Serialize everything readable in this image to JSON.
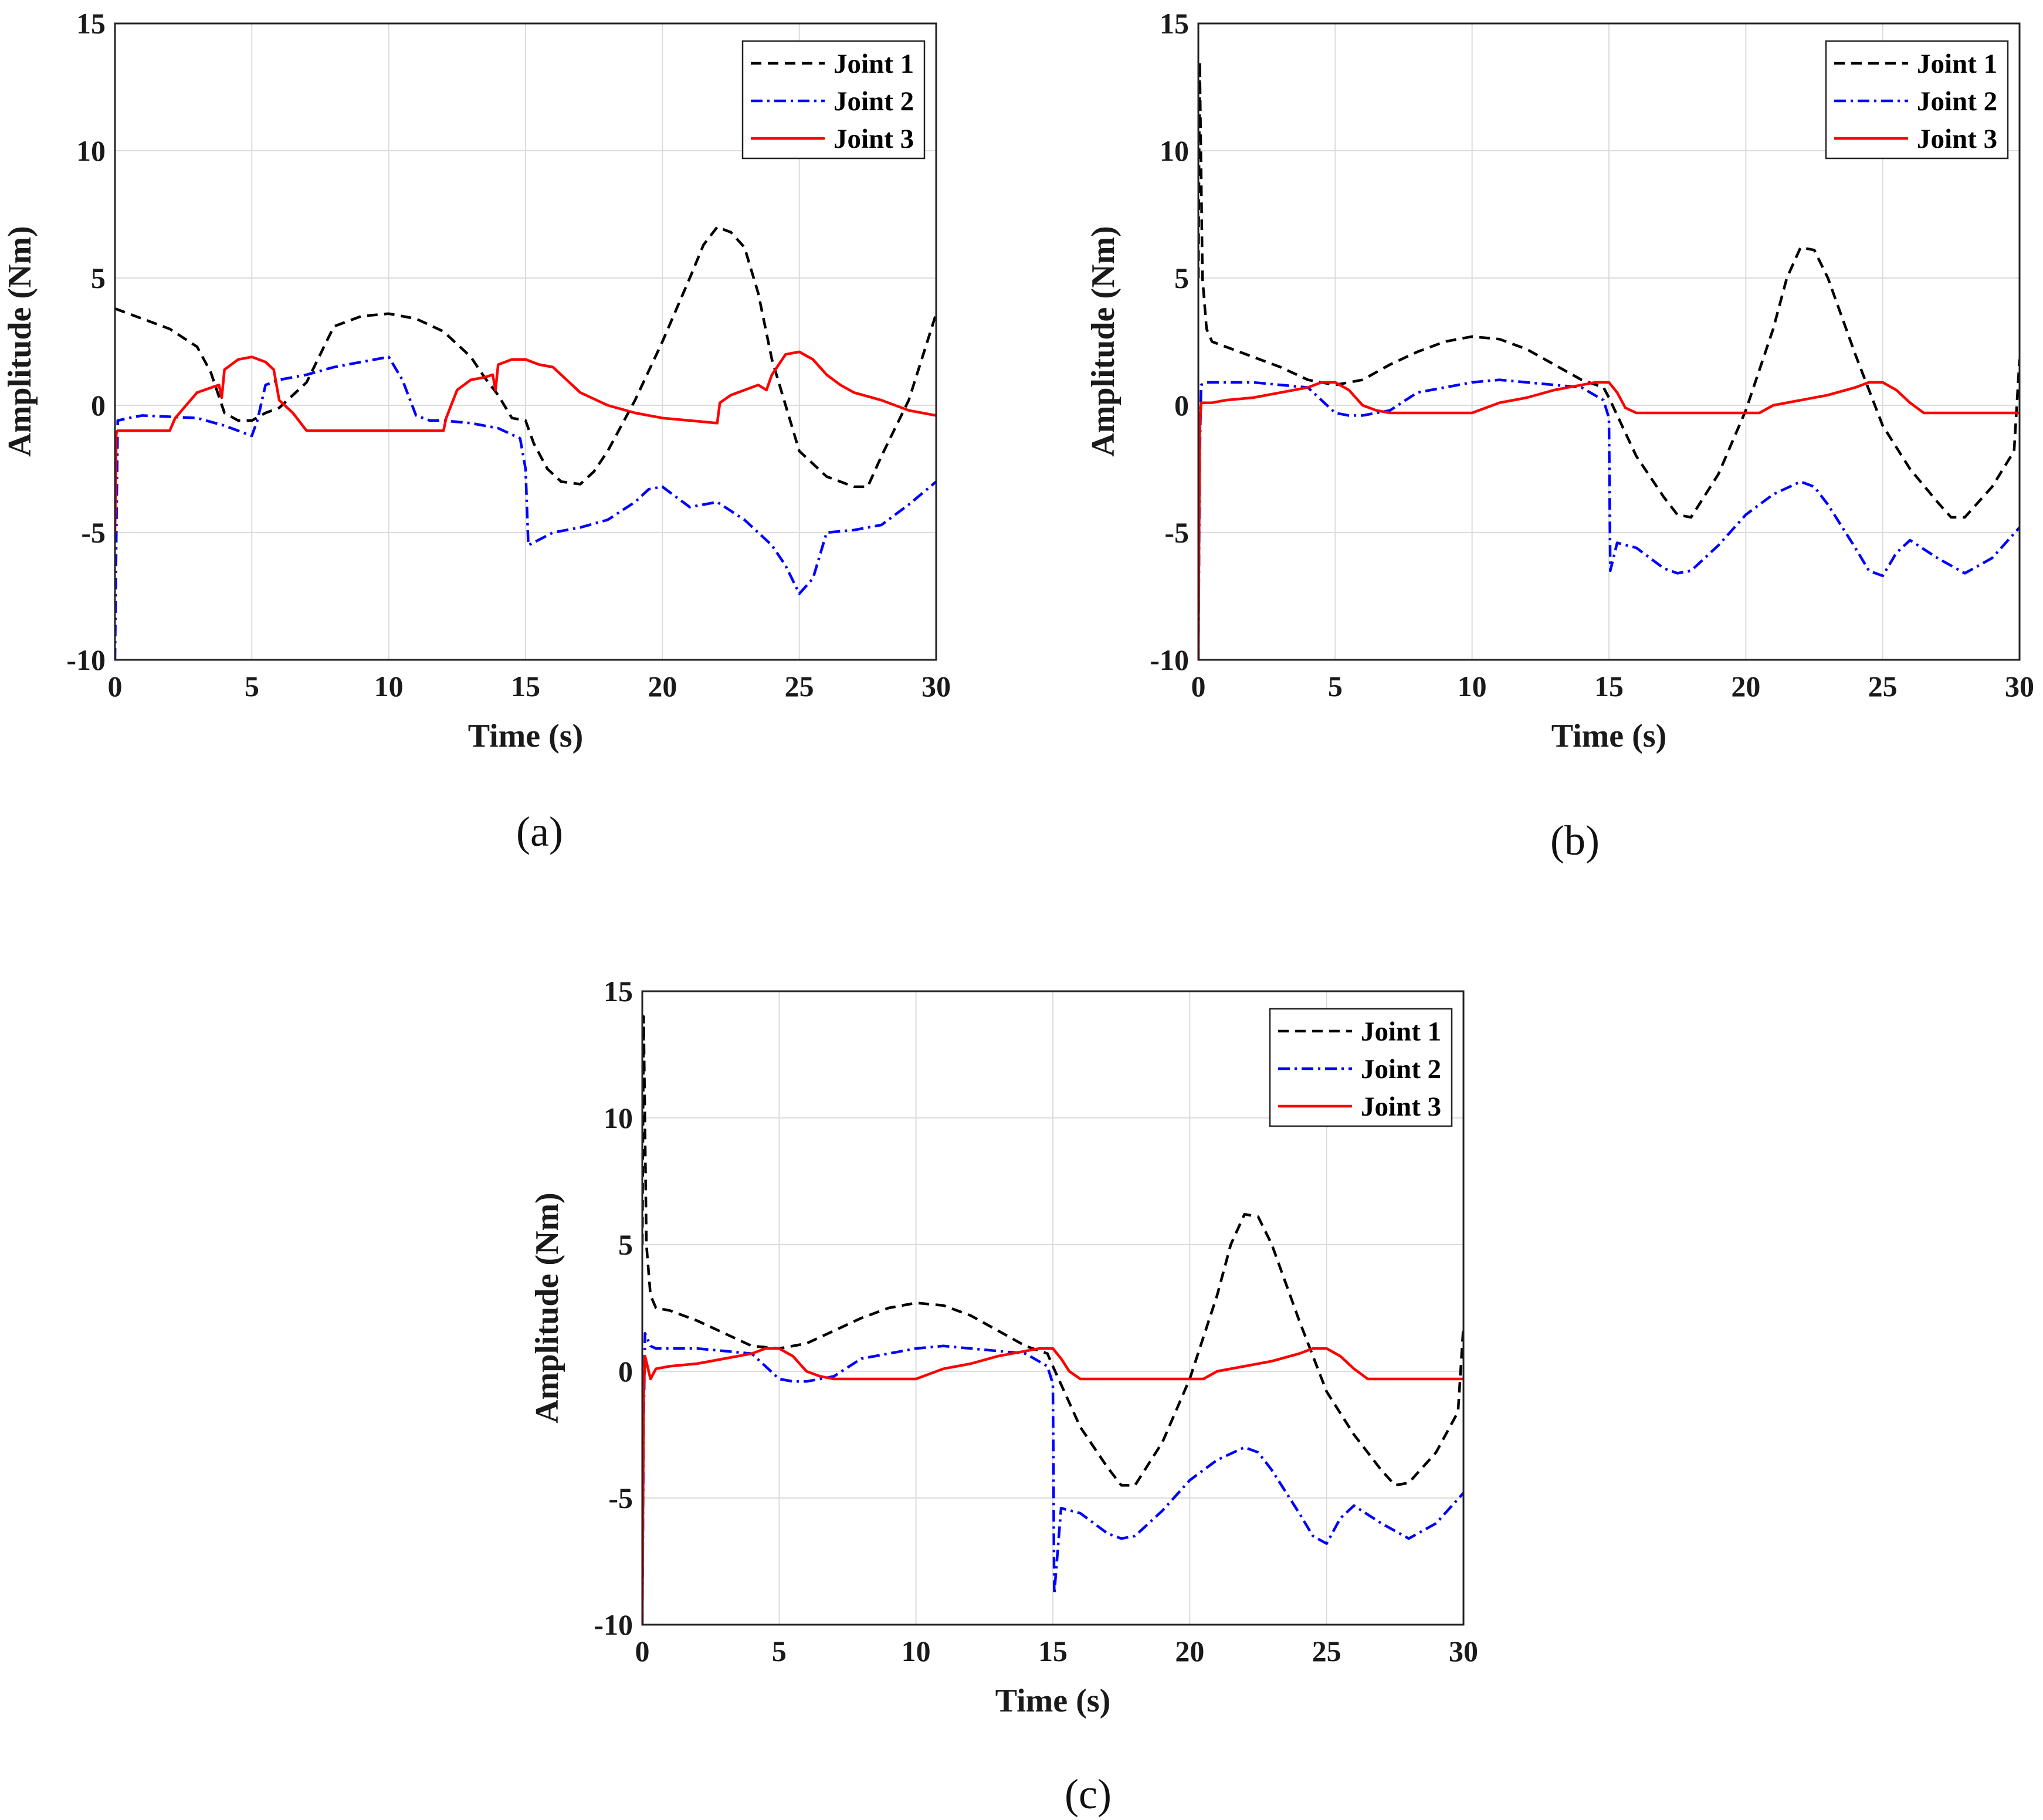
{
  "chart_data": [
    {
      "id": "a",
      "type": "line",
      "caption": "(a)",
      "title": "",
      "xlabel": "Time (s)",
      "ylabel": "Amplitude (Nm)",
      "xlim": [
        0,
        30
      ],
      "ylim": [
        -10,
        15
      ],
      "xticks": [
        "0",
        "5",
        "10",
        "15",
        "20",
        "25",
        "30"
      ],
      "yticks": [
        "-10",
        "-5",
        "0",
        "5",
        "10",
        "15"
      ],
      "grid": true,
      "legend_position": "top-right",
      "series": [
        {
          "name": "Joint 1",
          "color": "#000000",
          "dash": "dashed",
          "x": [
            0,
            0.5,
            1,
            2,
            3,
            3.5,
            4,
            4.5,
            5,
            5.5,
            6,
            7,
            7.5,
            8,
            9,
            10,
            11,
            12,
            12.5,
            13,
            13.5,
            14,
            14.5,
            15,
            15.3,
            15.8,
            16.3,
            17,
            17.5,
            18,
            19,
            20,
            21,
            21.5,
            22,
            22.5,
            23,
            23.5,
            24,
            25,
            26,
            27,
            27.5,
            28,
            29,
            30
          ],
          "y": [
            3.8,
            3.6,
            3.4,
            3.0,
            2.3,
            1.3,
            -0.3,
            -0.6,
            -0.6,
            -0.3,
            -0.1,
            0.9,
            2.0,
            3.1,
            3.5,
            3.6,
            3.4,
            2.9,
            2.4,
            1.9,
            1.1,
            0.4,
            -0.5,
            -0.6,
            -1.5,
            -2.5,
            -3.0,
            -3.1,
            -2.6,
            -1.8,
            0.2,
            2.5,
            5.0,
            6.3,
            7.0,
            6.8,
            6.2,
            4.4,
            1.8,
            -1.8,
            -2.8,
            -3.2,
            -3.2,
            -2.0,
            0.2,
            3.6
          ]
        },
        {
          "name": "Joint 2",
          "color": "#0000ff",
          "dash": "dashdot",
          "x": [
            0,
            0.05,
            0.1,
            0.5,
            1,
            3,
            4,
            4.5,
            5,
            5.2,
            5.5,
            6,
            7,
            8,
            9,
            10,
            10.5,
            11,
            11.5,
            12,
            13,
            14,
            14.8,
            15,
            15.1,
            16,
            17,
            18,
            19,
            19.5,
            20,
            21,
            22,
            23,
            24,
            24.5,
            25,
            25.5,
            26,
            27,
            28,
            29,
            30
          ],
          "y": [
            -10,
            -5,
            -0.6,
            -0.5,
            -0.4,
            -0.5,
            -0.8,
            -1.0,
            -1.2,
            -0.6,
            0.8,
            1.0,
            1.2,
            1.5,
            1.7,
            1.9,
            1.0,
            -0.4,
            -0.6,
            -0.6,
            -0.7,
            -0.9,
            -1.3,
            -2.5,
            -5.5,
            -5.0,
            -4.8,
            -4.5,
            -3.8,
            -3.3,
            -3.2,
            -4.0,
            -3.8,
            -4.5,
            -5.5,
            -6.3,
            -7.4,
            -6.8,
            -5.0,
            -4.9,
            -4.7,
            -3.9,
            -3.0
          ]
        },
        {
          "name": "Joint 3",
          "color": "#ff0000",
          "dash": "solid",
          "x": [
            0,
            0.05,
            0.1,
            0.5,
            1,
            2,
            2.2,
            3,
            3.8,
            3.9,
            4,
            4.5,
            5,
            5.5,
            5.8,
            6,
            6.5,
            7,
            8,
            9,
            10,
            11,
            12,
            12.1,
            12.5,
            13,
            13.5,
            13.8,
            13.9,
            14,
            14.5,
            15,
            15.5,
            16,
            16.5,
            17,
            18,
            19,
            20,
            21,
            22,
            22.1,
            22.5,
            23,
            23.5,
            23.8,
            24,
            24.5,
            25,
            25.5,
            26,
            26.5,
            27,
            28,
            29,
            30
          ],
          "y": [
            -5,
            -1.1,
            -1.0,
            -1.0,
            -1.0,
            -1.0,
            -0.5,
            0.5,
            0.8,
            0.3,
            1.4,
            1.8,
            1.9,
            1.7,
            1.4,
            0.2,
            -0.3,
            -1.0,
            -1.0,
            -1.0,
            -1.0,
            -1.0,
            -1.0,
            -0.5,
            0.6,
            1.0,
            1.1,
            1.2,
            0.6,
            1.6,
            1.8,
            1.8,
            1.6,
            1.5,
            1.0,
            0.5,
            0.0,
            -0.3,
            -0.5,
            -0.6,
            -0.7,
            0.1,
            0.4,
            0.6,
            0.8,
            0.6,
            1.2,
            2.0,
            2.1,
            1.8,
            1.2,
            0.8,
            0.5,
            0.2,
            -0.2,
            -0.4
          ]
        }
      ]
    },
    {
      "id": "b",
      "type": "line",
      "caption": "(b)",
      "title": "",
      "xlabel": "Time (s)",
      "ylabel": "Amplitude (Nm)",
      "xlim": [
        0,
        30
      ],
      "ylim": [
        -10,
        15
      ],
      "xticks": [
        "0",
        "5",
        "10",
        "15",
        "20",
        "25",
        "30"
      ],
      "yticks": [
        "-10",
        "-5",
        "0",
        "5",
        "10",
        "15"
      ],
      "grid": true,
      "legend_position": "top-right",
      "series": [
        {
          "name": "Joint 1",
          "color": "#000000",
          "dash": "dashed",
          "x": [
            0,
            0.05,
            0.15,
            0.3,
            0.5,
            1,
            2,
            3,
            4,
            5,
            6,
            7,
            8,
            9,
            10,
            11,
            12,
            13,
            14,
            14.8,
            15,
            16,
            17,
            17.5,
            18,
            19,
            20,
            21,
            21.5,
            22,
            22.5,
            23,
            24,
            25,
            26,
            27,
            27.5,
            28,
            29,
            29.8,
            30
          ],
          "y": [
            5.0,
            13.5,
            5.0,
            3.0,
            2.5,
            2.3,
            1.9,
            1.5,
            1.0,
            0.8,
            1.0,
            1.6,
            2.1,
            2.5,
            2.7,
            2.6,
            2.2,
            1.6,
            1.0,
            0.7,
            0.3,
            -2.0,
            -3.6,
            -4.3,
            -4.4,
            -2.7,
            -0.2,
            3.0,
            5.0,
            6.2,
            6.1,
            5.0,
            2.0,
            -0.8,
            -2.5,
            -3.8,
            -4.4,
            -4.4,
            -3.2,
            -1.8,
            1.8
          ]
        },
        {
          "name": "Joint 2",
          "color": "#0000ff",
          "dash": "dashdot",
          "x": [
            0,
            0.05,
            0.1,
            0.3,
            0.5,
            1,
            2,
            3,
            4,
            4.5,
            5,
            5.5,
            6,
            6.5,
            7,
            8,
            9,
            10,
            11,
            12,
            13,
            14,
            14.8,
            15,
            15.05,
            15.3,
            16,
            17,
            17.5,
            18,
            19,
            20,
            21,
            22,
            22.5,
            23,
            24,
            24.5,
            25,
            25.5,
            26,
            27,
            28,
            29,
            30
          ],
          "y": [
            -10,
            -2,
            0.8,
            0.9,
            0.9,
            0.9,
            0.9,
            0.8,
            0.7,
            0.2,
            -0.3,
            -0.4,
            -0.4,
            -0.3,
            -0.2,
            0.5,
            0.7,
            0.9,
            1.0,
            0.9,
            0.8,
            0.7,
            0.2,
            -0.5,
            -6.5,
            -5.4,
            -5.6,
            -6.4,
            -6.6,
            -6.5,
            -5.5,
            -4.3,
            -3.5,
            -3.0,
            -3.2,
            -3.9,
            -5.6,
            -6.5,
            -6.7,
            -5.8,
            -5.3,
            -6.0,
            -6.6,
            -6.0,
            -4.8
          ]
        },
        {
          "name": "Joint 3",
          "color": "#ff0000",
          "dash": "solid",
          "x": [
            0,
            0.05,
            0.1,
            0.5,
            1,
            2,
            3,
            4,
            4.5,
            5,
            5.5,
            6,
            6.5,
            7,
            8,
            9,
            10,
            11,
            12,
            13,
            14,
            14.5,
            15,
            15.3,
            15.6,
            16,
            17,
            18,
            19,
            20,
            20.5,
            21,
            22,
            23,
            24,
            24.5,
            25,
            25.5,
            26,
            26.5,
            27,
            28,
            29,
            30
          ],
          "y": [
            -10,
            -1,
            0.1,
            0.1,
            0.2,
            0.3,
            0.5,
            0.7,
            0.9,
            0.9,
            0.6,
            0.0,
            -0.2,
            -0.3,
            -0.3,
            -0.3,
            -0.3,
            0.1,
            0.3,
            0.6,
            0.8,
            0.9,
            0.9,
            0.5,
            -0.1,
            -0.3,
            -0.3,
            -0.3,
            -0.3,
            -0.3,
            -0.3,
            0.0,
            0.2,
            0.4,
            0.7,
            0.9,
            0.9,
            0.6,
            0.1,
            -0.3,
            -0.3,
            -0.3,
            -0.3,
            -0.3
          ]
        }
      ]
    },
    {
      "id": "c",
      "type": "line",
      "caption": "(c)",
      "title": "",
      "xlabel": "Time (s)",
      "ylabel": "Amplitude (Nm)",
      "xlim": [
        0,
        30
      ],
      "ylim": [
        -10,
        15
      ],
      "xticks": [
        "0",
        "5",
        "10",
        "15",
        "20",
        "25",
        "30"
      ],
      "yticks": [
        "-10",
        "-5",
        "0",
        "5",
        "10",
        "15"
      ],
      "grid": true,
      "legend_position": "top-right",
      "series": [
        {
          "name": "Joint 1",
          "color": "#000000",
          "dash": "dashed",
          "x": [
            0,
            0.05,
            0.15,
            0.3,
            0.5,
            1,
            2,
            3,
            4,
            5,
            6,
            7,
            8,
            9,
            10,
            11,
            12,
            13,
            14,
            14.8,
            15,
            16,
            17,
            17.5,
            18,
            19,
            20,
            21,
            21.5,
            22,
            22.5,
            23,
            24,
            25,
            26,
            27,
            27.5,
            28,
            29,
            29.8,
            30
          ],
          "y": [
            5.0,
            14.0,
            5.0,
            3.0,
            2.5,
            2.4,
            2.0,
            1.5,
            1.0,
            0.9,
            1.1,
            1.6,
            2.1,
            2.5,
            2.7,
            2.6,
            2.2,
            1.6,
            1.0,
            0.7,
            0.2,
            -2.2,
            -3.8,
            -4.5,
            -4.5,
            -2.8,
            -0.3,
            3.0,
            5.0,
            6.2,
            6.1,
            5.0,
            2.0,
            -0.8,
            -2.5,
            -3.9,
            -4.5,
            -4.4,
            -3.2,
            -1.6,
            1.8
          ]
        },
        {
          "name": "Joint 2",
          "color": "#0000ff",
          "dash": "dashdot",
          "x": [
            0,
            0.05,
            0.1,
            0.3,
            0.5,
            1,
            2,
            3,
            4,
            4.5,
            5,
            5.5,
            6,
            6.5,
            7,
            8,
            9,
            10,
            11,
            12,
            13,
            14,
            14.8,
            15,
            15.05,
            15.3,
            16,
            17,
            17.5,
            18,
            19,
            20,
            21,
            22,
            22.5,
            23,
            24,
            24.5,
            25,
            25.5,
            26,
            27,
            28,
            29,
            30
          ],
          "y": [
            -10,
            -2,
            1.5,
            1.0,
            0.9,
            0.9,
            0.9,
            0.8,
            0.7,
            0.2,
            -0.3,
            -0.4,
            -0.4,
            -0.3,
            -0.2,
            0.5,
            0.7,
            0.9,
            1.0,
            0.9,
            0.8,
            0.7,
            0.2,
            -0.5,
            -8.8,
            -5.4,
            -5.6,
            -6.4,
            -6.6,
            -6.5,
            -5.5,
            -4.3,
            -3.5,
            -3.0,
            -3.2,
            -3.9,
            -5.6,
            -6.5,
            -6.8,
            -5.8,
            -5.3,
            -6.0,
            -6.6,
            -6.0,
            -4.8
          ]
        },
        {
          "name": "Joint 3",
          "color": "#ff0000",
          "dash": "solid",
          "x": [
            0,
            0.05,
            0.1,
            0.3,
            0.5,
            1,
            2,
            3,
            4,
            4.5,
            5,
            5.5,
            6,
            6.5,
            7,
            8,
            9,
            10,
            11,
            12,
            13,
            14,
            14.5,
            15,
            15.3,
            15.6,
            16,
            17,
            18,
            19,
            20,
            20.5,
            21,
            22,
            23,
            24,
            24.5,
            25,
            25.5,
            26,
            26.5,
            27,
            28,
            29,
            30
          ],
          "y": [
            -10,
            -1,
            0.6,
            -0.3,
            0.1,
            0.2,
            0.3,
            0.5,
            0.7,
            0.9,
            0.9,
            0.6,
            0.0,
            -0.2,
            -0.3,
            -0.3,
            -0.3,
            -0.3,
            0.1,
            0.3,
            0.6,
            0.8,
            0.9,
            0.9,
            0.5,
            0.0,
            -0.3,
            -0.3,
            -0.3,
            -0.3,
            -0.3,
            -0.3,
            0.0,
            0.2,
            0.4,
            0.7,
            0.9,
            0.9,
            0.6,
            0.1,
            -0.3,
            -0.3,
            -0.3,
            -0.3,
            -0.3
          ]
        }
      ]
    }
  ]
}
